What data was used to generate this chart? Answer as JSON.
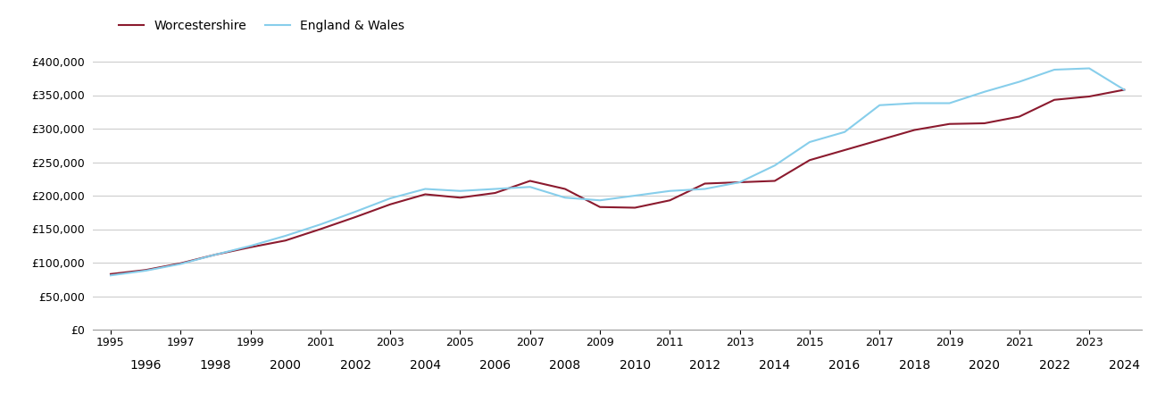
{
  "worcestershire": {
    "years": [
      1995,
      1996,
      1997,
      1998,
      1999,
      2000,
      2001,
      2002,
      2003,
      2004,
      2005,
      2006,
      2007,
      2008,
      2009,
      2010,
      2011,
      2012,
      2013,
      2014,
      2015,
      2016,
      2017,
      2018,
      2019,
      2020,
      2021,
      2022,
      2023,
      2024
    ],
    "values": [
      83000,
      89000,
      99000,
      112000,
      123000,
      133000,
      150000,
      168000,
      187000,
      202000,
      197000,
      204000,
      222000,
      210000,
      183000,
      182000,
      193000,
      218000,
      220000,
      222000,
      253000,
      268000,
      283000,
      298000,
      307000,
      308000,
      318000,
      343000,
      348000,
      358000
    ]
  },
  "england_wales": {
    "years": [
      1995,
      1996,
      1997,
      1998,
      1999,
      2000,
      2001,
      2002,
      2003,
      2004,
      2005,
      2006,
      2007,
      2008,
      2009,
      2010,
      2011,
      2012,
      2013,
      2014,
      2015,
      2016,
      2017,
      2018,
      2019,
      2020,
      2021,
      2022,
      2023,
      2024
    ],
    "values": [
      81000,
      88000,
      98000,
      112000,
      125000,
      140000,
      157000,
      176000,
      196000,
      210000,
      207000,
      210000,
      213000,
      197000,
      193000,
      200000,
      207000,
      210000,
      220000,
      245000,
      280000,
      295000,
      335000,
      338000,
      338000,
      355000,
      370000,
      388000,
      390000,
      358000
    ]
  },
  "worcestershire_color": "#8B1A2E",
  "england_wales_color": "#87CEEB",
  "background_color": "#ffffff",
  "grid_color": "#cccccc",
  "ylim": [
    0,
    420000
  ],
  "yticks": [
    0,
    50000,
    100000,
    150000,
    200000,
    250000,
    300000,
    350000,
    400000
  ],
  "xlim": [
    1994.5,
    2024.5
  ],
  "odd_xticks": [
    1995,
    1997,
    1999,
    2001,
    2003,
    2005,
    2007,
    2009,
    2011,
    2013,
    2015,
    2017,
    2019,
    2021,
    2023
  ],
  "even_xticks": [
    1996,
    1998,
    2000,
    2002,
    2004,
    2006,
    2008,
    2010,
    2012,
    2014,
    2016,
    2018,
    2020,
    2022,
    2024
  ],
  "legend_worcestershire": "Worcestershire",
  "legend_england_wales": "England & Wales"
}
